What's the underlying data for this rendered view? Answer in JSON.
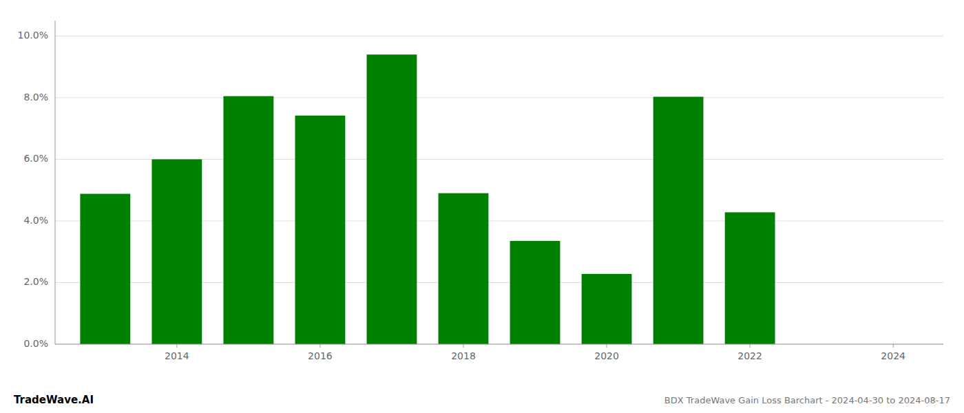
{
  "chart_data": {
    "type": "bar",
    "title": "BDX TradeWave Gain Loss Barchart - 2024-04-30 to 2024-08-17",
    "annotations": [
      "TradeWave.AI"
    ],
    "x": [
      2013,
      2014,
      2015,
      2016,
      2017,
      2018,
      2019,
      2020,
      2021,
      2022,
      2023
    ],
    "values": [
      0.0488,
      0.06,
      0.0805,
      0.0742,
      0.094,
      0.049,
      0.0335,
      0.0228,
      0.0803,
      0.0428,
      0.0
    ],
    "color": "#008000",
    "xlim": [
      2012.3,
      2024.7
    ],
    "xticks": [
      2014,
      2016,
      2018,
      2020,
      2022,
      2024
    ],
    "ylim": [
      0,
      0.105
    ],
    "yticks": [
      {
        "value": 0.0,
        "label": "0.0%"
      },
      {
        "value": 0.02,
        "label": "2.0%"
      },
      {
        "value": 0.04,
        "label": "4.0%"
      },
      {
        "value": 0.06,
        "label": "6.0%"
      },
      {
        "value": 0.08,
        "label": "8.0%"
      },
      {
        "value": 0.1,
        "label": "10.0%"
      }
    ],
    "grid": true
  }
}
